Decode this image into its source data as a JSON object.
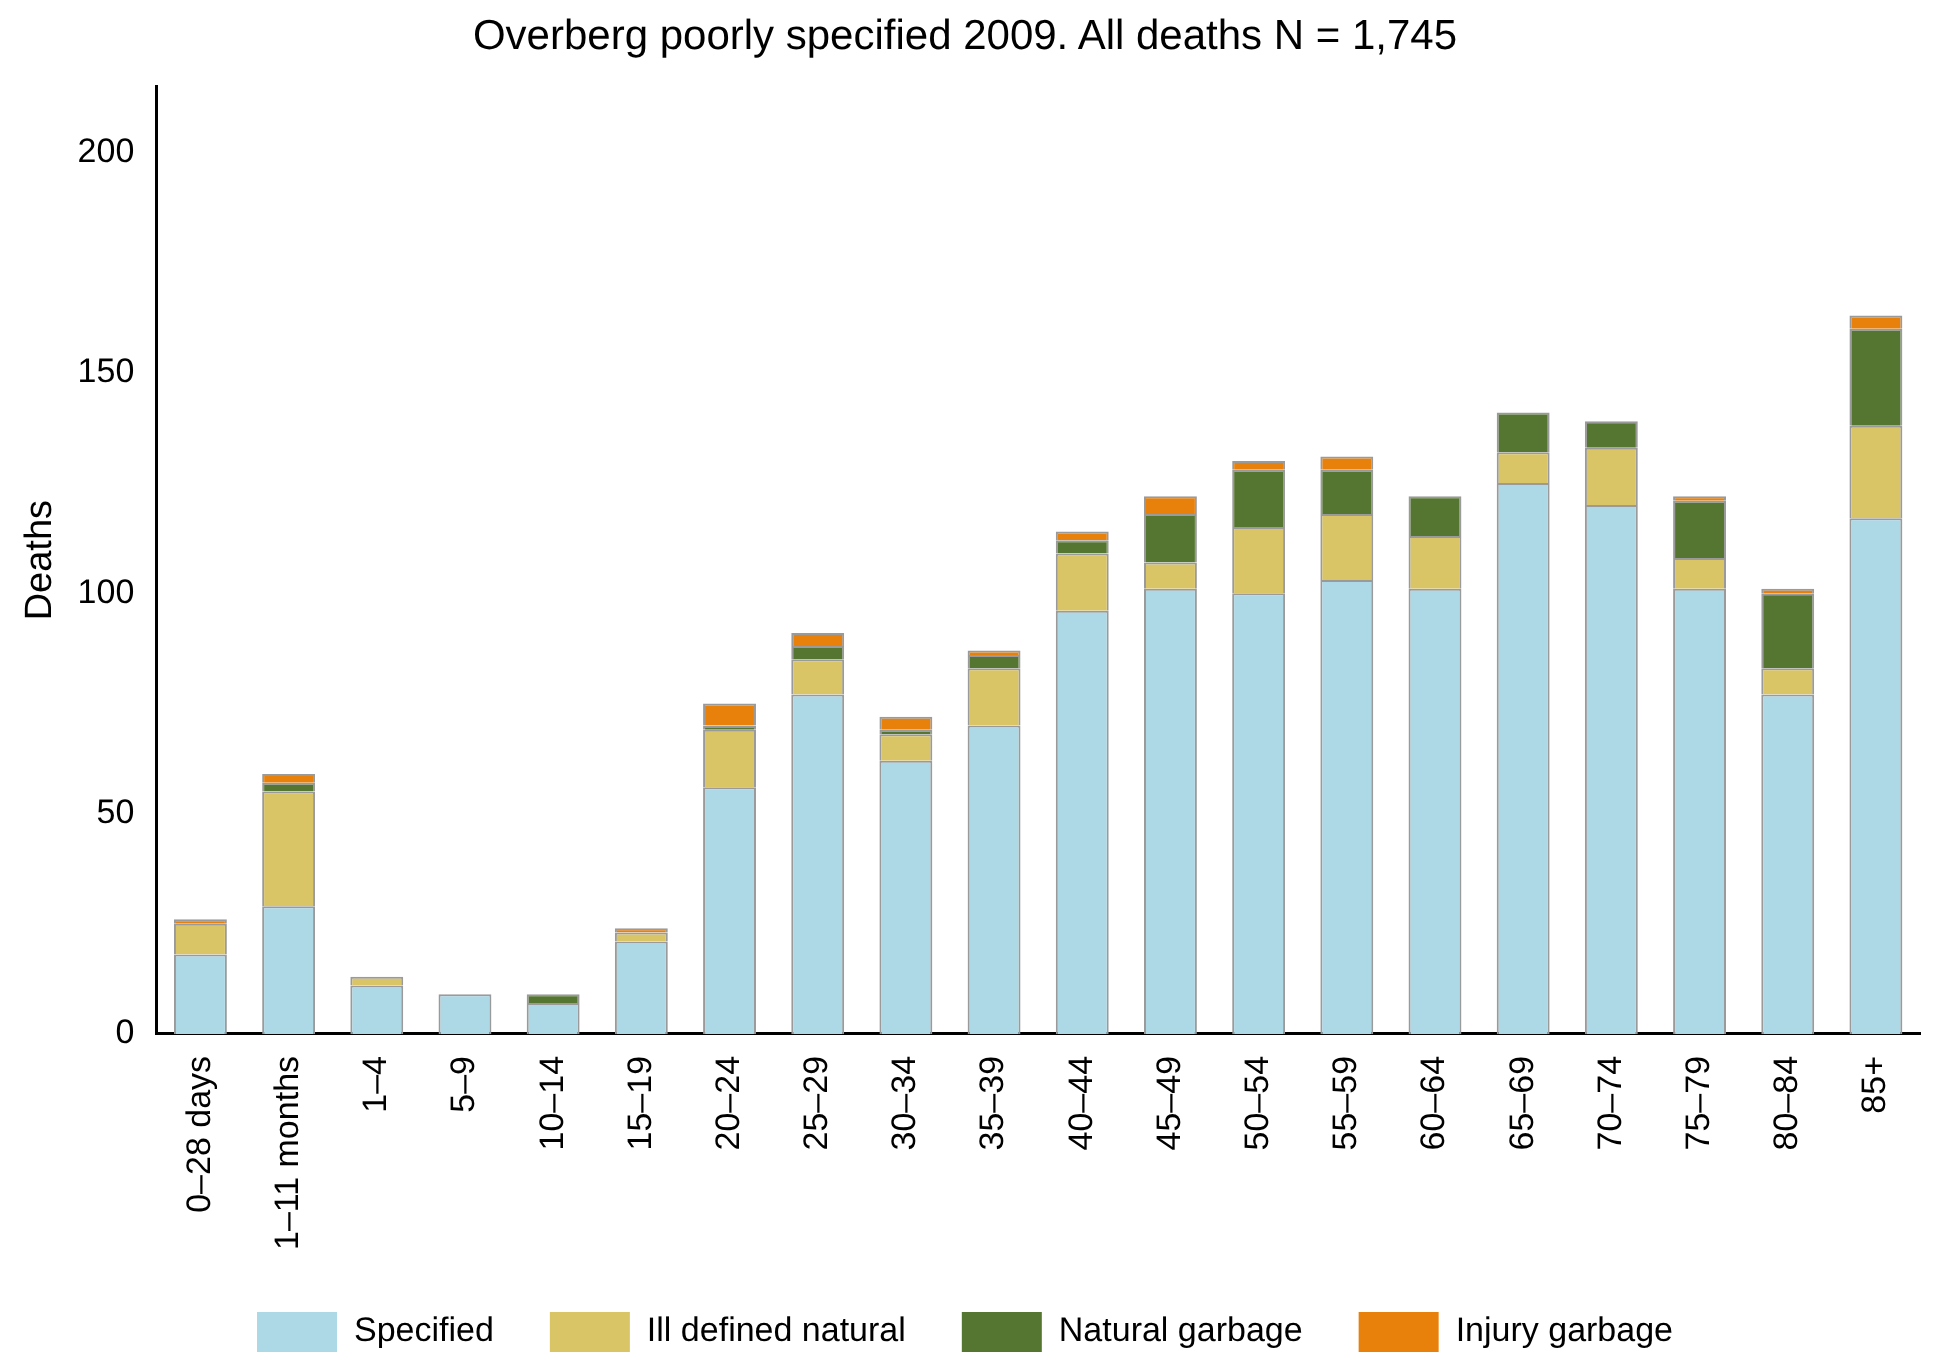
{
  "chart_data": {
    "type": "bar",
    "title": "Overberg poorly specified 2009. All deaths N = 1,745",
    "ylabel": "Deaths",
    "categories": [
      "0–28 days",
      "1–11 months",
      "1–4",
      "5–9",
      "10–14",
      "15–19",
      "20–24",
      "25–29",
      "30–34",
      "35–39",
      "40–44",
      "45–49",
      "50–54",
      "55–59",
      "60–64",
      "65–69",
      "70–74",
      "75–79",
      "80–84",
      "85+"
    ],
    "stacked": true,
    "series": [
      {
        "name": "Specified",
        "color": "#add8e6",
        "values": [
          18,
          29,
          11,
          9,
          7,
          21,
          56,
          77,
          62,
          70,
          96,
          101,
          100,
          103,
          101,
          125,
          120,
          101,
          77,
          117
        ]
      },
      {
        "name": "Ill defined natural",
        "color": "#d9c466",
        "values": [
          7,
          26,
          2,
          0,
          0,
          2,
          13,
          8,
          6,
          13,
          13,
          6,
          15,
          15,
          12,
          7,
          13,
          7,
          6,
          21
        ]
      },
      {
        "name": "Natural garbage",
        "color": "#557630",
        "values": [
          0,
          2,
          0,
          0,
          2,
          0,
          1,
          3,
          1,
          3,
          3,
          11,
          13,
          10,
          9,
          9,
          6,
          13,
          17,
          22
        ]
      },
      {
        "name": "Injury garbage",
        "color": "#e8810c",
        "values": [
          1,
          2,
          0,
          0,
          0,
          1,
          5,
          3,
          3,
          1,
          2,
          4,
          2,
          3,
          0,
          0,
          0,
          1,
          1,
          3
        ]
      }
    ],
    "ylim": [
      0,
      215
    ],
    "yticks": [
      0,
      50,
      100,
      150,
      200
    ],
    "grid": false,
    "legend": "bottom"
  }
}
